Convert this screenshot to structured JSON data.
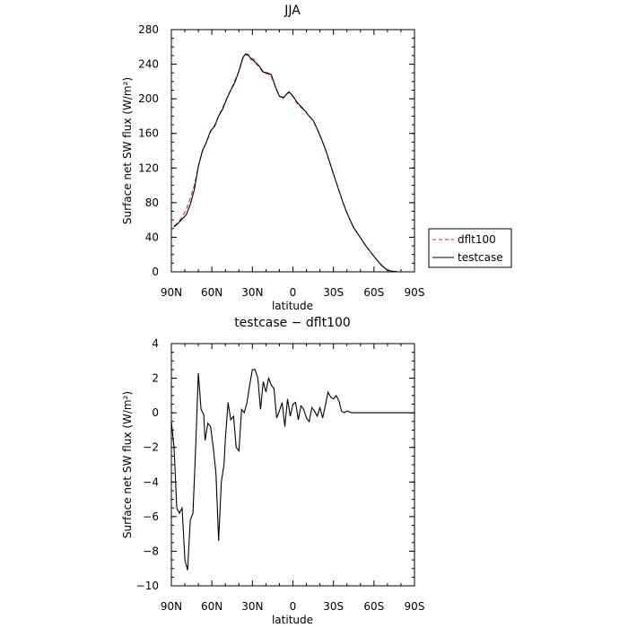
{
  "chart_data": [
    {
      "type": "line",
      "title": "JJA",
      "xlabel": "latitude",
      "ylabel": "Surface net SW flux (W/m²)",
      "xlim": [
        90,
        -90
      ],
      "ylim": [
        0,
        280
      ],
      "x_ticks": [
        90,
        60,
        30,
        0,
        -30,
        -60,
        -90
      ],
      "x_tick_labels": [
        "90N",
        "60N",
        "30N",
        "0",
        "30S",
        "60S",
        "90S"
      ],
      "y_ticks": [
        0,
        40,
        80,
        120,
        160,
        200,
        240,
        280
      ],
      "y_tick_labels": [
        "0",
        "40",
        "80",
        "120",
        "160",
        "200",
        "240",
        "280"
      ],
      "legend_position": "right, outside",
      "series": [
        {
          "name": "dflt100",
          "color": "#d62728",
          "dash": "dashed",
          "x": [
            88,
            85,
            82,
            79,
            76,
            73,
            70,
            67,
            64,
            61,
            58,
            55,
            52,
            49,
            46,
            43,
            40,
            37,
            35,
            33,
            31,
            29,
            27,
            25,
            22,
            19,
            16,
            13,
            10,
            7,
            5,
            3,
            1,
            -1,
            -3,
            -6,
            -9,
            -12,
            -15,
            -18,
            -21,
            -24,
            -27,
            -30,
            -33,
            -36,
            -39,
            -42,
            -45,
            -48,
            -51,
            -54,
            -57,
            -60,
            -63,
            -66,
            -69,
            -72,
            -75,
            -78,
            -81,
            -84,
            -87
          ],
          "y": [
            53,
            57,
            63,
            72,
            85,
            100,
            122,
            139,
            150,
            162,
            169,
            180,
            190,
            200,
            210,
            221,
            232,
            247,
            251,
            250,
            247,
            246,
            240,
            237,
            230,
            229,
            226,
            214,
            203,
            202,
            205,
            207,
            205,
            200,
            195,
            190,
            186,
            180,
            175,
            165,
            154,
            142,
            128,
            113,
            99,
            85,
            72,
            61,
            51,
            44,
            37,
            30,
            24,
            18,
            12,
            7,
            3,
            1,
            0.4,
            0,
            0,
            0,
            0
          ]
        },
        {
          "name": "testcase",
          "color": "#000000",
          "dash": "solid",
          "x": [
            88,
            85,
            82,
            79,
            76,
            73,
            70,
            67,
            64,
            61,
            58,
            55,
            52,
            49,
            46,
            43,
            40,
            37,
            35,
            33,
            31,
            29,
            27,
            25,
            22,
            19,
            16,
            13,
            10,
            7,
            5,
            3,
            1,
            -1,
            -3,
            -6,
            -9,
            -12,
            -15,
            -18,
            -21,
            -24,
            -27,
            -30,
            -33,
            -36,
            -39,
            -42,
            -45,
            -48,
            -51,
            -54,
            -57,
            -60,
            -63,
            -66,
            -69,
            -72,
            -75,
            -78,
            -81,
            -84,
            -87
          ],
          "y": [
            52,
            56,
            61,
            66,
            78,
            95,
            122,
            140,
            150,
            163,
            168,
            180,
            188,
            200,
            210,
            219,
            232,
            248,
            252,
            251,
            246,
            244,
            241,
            238,
            231,
            230,
            228,
            214,
            203,
            201,
            205,
            208,
            205,
            201,
            196,
            191,
            186,
            180,
            175,
            165,
            154,
            142,
            128,
            113,
            99,
            85,
            72,
            61,
            51,
            44,
            37,
            30,
            24,
            18,
            12,
            7,
            3,
            1,
            0.4,
            0,
            0,
            0,
            0
          ]
        }
      ]
    },
    {
      "type": "line",
      "title": "testcase − dflt100",
      "xlabel": "latitude",
      "ylabel": "Surface net SW flux (W/m²)",
      "xlim": [
        90,
        -90
      ],
      "ylim": [
        -10,
        4
      ],
      "x_ticks": [
        90,
        60,
        30,
        0,
        -30,
        -60,
        -90
      ],
      "x_tick_labels": [
        "90N",
        "60N",
        "30N",
        "0",
        "30S",
        "60S",
        "90S"
      ],
      "y_ticks": [
        -10,
        -8,
        -6,
        -4,
        -2,
        0,
        2,
        4
      ],
      "y_tick_labels": [
        "−10",
        "−8",
        "−6",
        "−4",
        "−2",
        "0",
        "2",
        "4"
      ],
      "series": [
        {
          "color": "#000000",
          "dash": "solid",
          "x": [
            90,
            88,
            86,
            84,
            82,
            80,
            78,
            76,
            74,
            72,
            70,
            68,
            66,
            65,
            63,
            61,
            59,
            57,
            55,
            53,
            51,
            50,
            48,
            46,
            44,
            42,
            40,
            38,
            36,
            34,
            32,
            30,
            28,
            26,
            24,
            22,
            20,
            18,
            16,
            14,
            12,
            10,
            8,
            6,
            4,
            2,
            0,
            -2,
            -4,
            -6,
            -8,
            -10,
            -12,
            -14,
            -16,
            -18,
            -20,
            -22,
            -24,
            -26,
            -28,
            -30,
            -32,
            -34,
            -36,
            -38,
            -40,
            -42,
            -44,
            -46,
            -48,
            -50,
            -52,
            -54,
            -56,
            -58,
            -60,
            -62,
            -64,
            -66,
            -70,
            -75,
            -80,
            -85,
            -90
          ],
          "y": [
            -0.5,
            -2,
            -5.5,
            -5.8,
            -5.5,
            -8.5,
            -9.1,
            -6.2,
            -5.8,
            -2,
            2.3,
            0.2,
            -0.1,
            -1.6,
            -0.6,
            -0.8,
            -2,
            -3.5,
            -7.4,
            -4,
            -3,
            -1.5,
            0.6,
            -0.4,
            -0.2,
            -2,
            -2.2,
            0.2,
            0,
            0.6,
            1.6,
            2.5,
            2.5,
            2,
            0.2,
            1.8,
            1.2,
            2,
            1.6,
            1.4,
            -0.3,
            0.1,
            0.6,
            -0.8,
            0.8,
            -0.2,
            0.5,
            0.6,
            -0.4,
            0.4,
            0.2,
            -0.3,
            -0.5,
            0.3,
            0.1,
            -0.2,
            0.3,
            -0.3,
            0.4,
            1.2,
            0.9,
            0.8,
            1,
            0.7,
            0.1,
            0,
            0.1,
            0.05,
            0,
            0,
            0,
            0,
            0,
            0,
            0,
            0,
            0,
            0,
            0,
            0,
            0,
            0,
            0,
            0,
            0
          ]
        }
      ]
    }
  ]
}
